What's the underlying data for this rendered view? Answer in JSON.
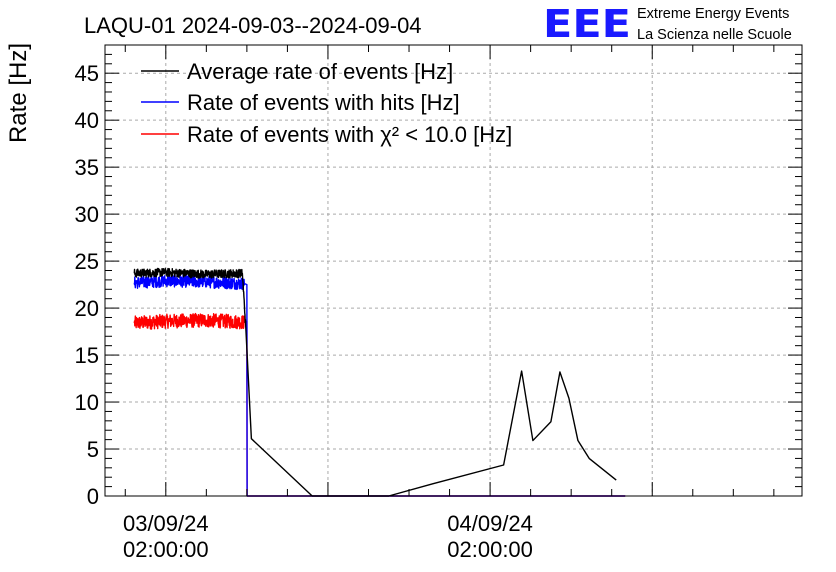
{
  "header": {
    "title": "LAQU-01 2024-09-03--2024-09-04",
    "logo_text": "EEE",
    "logo_line1": "Extreme Energy Events",
    "logo_line2": "La Scienza nelle Scuole"
  },
  "colors": {
    "average": "#000000",
    "hits": "#0000ff",
    "chi2": "#ff0000",
    "logo": "#1a1aff",
    "grid": "#aaaaaa"
  },
  "chart_data": {
    "type": "line",
    "ylabel": "Rate [Hz]",
    "ylim": [
      0,
      48
    ],
    "yticks": [
      0,
      5,
      10,
      15,
      20,
      25,
      30,
      35,
      40,
      45
    ],
    "xlim": [
      "2024-09-02 21:30:00",
      "2024-09-05 01:05:00"
    ],
    "xtick_labels": [
      {
        "date": "03/09/24",
        "time": "02:00:00",
        "x": "2024-09-03 02:00:00"
      },
      {
        "date": "04/09/24",
        "time": "02:00:00",
        "x": "2024-09-04 02:00:00"
      }
    ],
    "grid": true,
    "legend_position": "top-left",
    "series": [
      {
        "name": "Average rate of events [Hz]",
        "x": [
          "2024-09-02 23:40:00",
          "2024-09-03 02:00:00",
          "2024-09-03 05:00:00",
          "2024-09-03 07:40:00",
          "2024-09-03 07:55:00",
          "2024-09-03 08:20:00",
          "2024-09-03 12:50:00",
          "2024-09-03 18:30:00",
          "2024-09-03 21:45:00",
          "2024-09-04 03:00:00",
          "2024-09-04 04:20:00",
          "2024-09-04 05:10:00",
          "2024-09-04 06:30:00",
          "2024-09-04 07:10:00",
          "2024-09-04 07:50:00",
          "2024-09-04 08:30:00",
          "2024-09-04 09:20:00",
          "2024-09-04 11:20:00"
        ],
        "y": [
          23.7,
          23.8,
          23.6,
          23.7,
          18.0,
          6.1,
          0.0,
          0.0,
          1.3,
          3.3,
          13.3,
          5.9,
          7.9,
          13.2,
          10.4,
          5.9,
          4.0,
          1.7
        ]
      },
      {
        "name": "Rate of events with hits [Hz]",
        "x": [
          "2024-09-02 23:40:00",
          "2024-09-03 02:00:00",
          "2024-09-03 05:00:00",
          "2024-09-03 07:50:00",
          "2024-09-03 08:00:00",
          "2024-09-03 08:01:00",
          "2024-09-04 12:00:00"
        ],
        "y": [
          22.7,
          22.9,
          22.8,
          22.6,
          22.5,
          0.0,
          0.0
        ]
      },
      {
        "name": "Rate of events with χ² < 10.0 [Hz]",
        "x": [
          "2024-09-02 23:40:00",
          "2024-09-03 02:00:00",
          "2024-09-03 05:00:00",
          "2024-09-03 07:50:00",
          "2024-09-03 08:00:00",
          "2024-09-03 08:01:00",
          "2024-09-04 12:00:00"
        ],
        "y": [
          18.4,
          18.6,
          18.7,
          18.5,
          18.6,
          0.0,
          0.0
        ]
      }
    ]
  }
}
